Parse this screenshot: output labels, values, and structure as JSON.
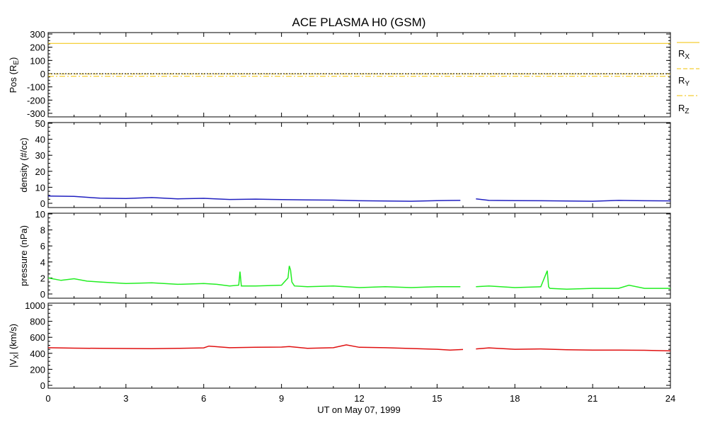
{
  "title": "ACE PLASMA H0 (GSM)",
  "xlabel": "UT on May 07, 1999",
  "colors": {
    "axes": "#000000",
    "position": "#f2c200",
    "density": "#2020c0",
    "pressure": "#22ee22",
    "velocity": "#e01010"
  },
  "panels": [
    {
      "id": "position",
      "ylabel_main": "Pos (R",
      "ylabel_sub": "E",
      "ylabel_tail": ")",
      "yticks": [
        "300",
        "200",
        "100",
        "0",
        "-100",
        "-200",
        "-300"
      ],
      "legend": [
        {
          "main": "R",
          "sub": "X",
          "style": "solid"
        },
        {
          "main": "R",
          "sub": "Y",
          "style": "dashed"
        },
        {
          "main": "R",
          "sub": "Z",
          "style": "dashdot"
        }
      ]
    },
    {
      "id": "density",
      "ylabel": "density (#/cc)",
      "yticks": [
        "50",
        "40",
        "30",
        "20",
        "10",
        "0"
      ]
    },
    {
      "id": "pressure",
      "ylabel": "pressure (nPa)",
      "yticks": [
        "10",
        "8",
        "6",
        "4",
        "2",
        "0"
      ]
    },
    {
      "id": "velocity",
      "ylabel_main": "|V",
      "ylabel_sub": "X",
      "ylabel_tail": "| (km/s)",
      "yticks": [
        "1000",
        "800",
        "600",
        "400",
        "200",
        "0"
      ]
    }
  ],
  "xticks": [
    "0",
    "3",
    "6",
    "9",
    "12",
    "15",
    "18",
    "21",
    "24"
  ],
  "chart_data": [
    {
      "type": "line",
      "name": "position",
      "ylabel": "Pos (RE)",
      "ylim": [
        -320,
        320
      ],
      "x": [
        0,
        24
      ],
      "series": [
        {
          "name": "RX",
          "values": [
            229,
            229
          ]
        },
        {
          "name": "RY",
          "values": [
            -2,
            -2
          ]
        },
        {
          "name": "RZ",
          "values": [
            -20,
            -20
          ]
        }
      ]
    },
    {
      "type": "line",
      "name": "density",
      "ylabel": "density (#/cc)",
      "ylim": [
        0,
        50
      ],
      "x": [
        0,
        1,
        2,
        3,
        4,
        5,
        6,
        7,
        8,
        9,
        10,
        11,
        12,
        13,
        14,
        15,
        15.9,
        16.3,
        16.5,
        17,
        18,
        19,
        20,
        21,
        22,
        23,
        24
      ],
      "series": [
        {
          "name": "density",
          "values": [
            4.5,
            4.3,
            3.2,
            3.0,
            3.6,
            2.8,
            3.1,
            2.4,
            2.6,
            2.3,
            2.1,
            2.0,
            1.6,
            1.4,
            1.3,
            1.7,
            1.8,
            null,
            2.8,
            1.8,
            1.7,
            1.6,
            1.4,
            1.3,
            1.8,
            1.6,
            1.5
          ]
        }
      ]
    },
    {
      "type": "line",
      "name": "pressure",
      "ylabel": "pressure (nPa)",
      "ylim": [
        0,
        11
      ],
      "x": [
        0,
        0.5,
        1,
        1.5,
        2,
        3,
        4,
        5,
        6,
        6.5,
        7,
        7.35,
        7.4,
        7.45,
        8,
        9,
        9.25,
        9.3,
        9.35,
        9.4,
        9.5,
        10,
        11,
        12,
        13,
        14,
        15,
        15.9,
        16.3,
        16.5,
        17,
        18,
        19,
        19.25,
        19.3,
        19.35,
        20,
        21,
        22,
        22.4,
        23,
        24
      ],
      "series": [
        {
          "name": "pressure",
          "values": [
            2.0,
            1.7,
            1.9,
            1.6,
            1.5,
            1.3,
            1.4,
            1.2,
            1.3,
            1.2,
            1.0,
            1.1,
            2.8,
            1.0,
            1.0,
            1.1,
            2.0,
            3.5,
            3.0,
            1.5,
            1.0,
            0.9,
            1.0,
            0.8,
            0.9,
            0.8,
            0.9,
            0.9,
            null,
            0.9,
            1.0,
            0.8,
            0.9,
            2.9,
            0.9,
            0.7,
            0.6,
            0.7,
            0.7,
            1.1,
            0.7,
            0.7
          ]
        }
      ]
    },
    {
      "type": "line",
      "name": "velocity",
      "ylabel": "|VX| (km/s)",
      "ylim": [
        0,
        1000
      ],
      "x": [
        0,
        1,
        2,
        3,
        4,
        5,
        6,
        6.2,
        7,
        8,
        9,
        9.3,
        10,
        11,
        11.5,
        12,
        13,
        14,
        15,
        15.5,
        16,
        16.3,
        16.5,
        17,
        18,
        19,
        20,
        21,
        22,
        23,
        24
      ],
      "series": [
        {
          "name": "velocity",
          "values": [
            470,
            465,
            462,
            460,
            458,
            462,
            468,
            490,
            470,
            475,
            478,
            485,
            462,
            470,
            505,
            475,
            470,
            460,
            450,
            440,
            448,
            null,
            455,
            468,
            450,
            455,
            445,
            440,
            440,
            438,
            430
          ]
        }
      ]
    }
  ]
}
